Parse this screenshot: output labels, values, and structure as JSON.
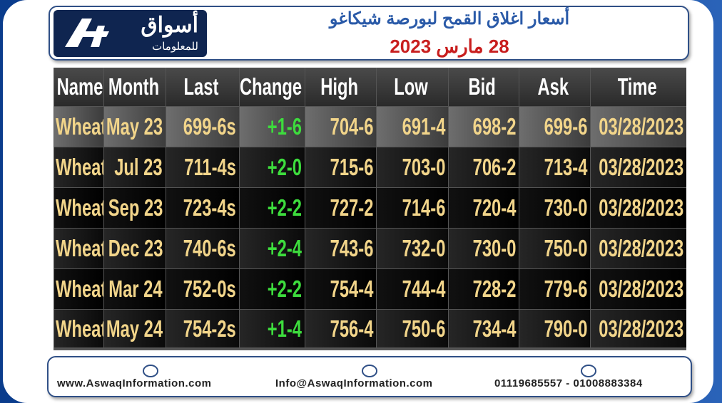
{
  "header": {
    "logo_main": "أسواق",
    "logo_sub": "للمعلومات",
    "title": "أسعار اغلاق القمح لبورصة شيكاغو",
    "date": "28 مارس 2023"
  },
  "table": {
    "columns": [
      "Name",
      "Month",
      "Last",
      "Change",
      "High",
      "Low",
      "Bid",
      "Ask",
      "Time"
    ],
    "rows": [
      [
        "Wheat",
        "May 23",
        "699-6s",
        "+1-6",
        "704-6",
        "691-4",
        "698-2",
        "699-6",
        "03/28/2023"
      ],
      [
        "Wheat",
        "Jul 23",
        "711-4s",
        "+2-0",
        "715-6",
        "703-0",
        "706-2",
        "713-4",
        "03/28/2023"
      ],
      [
        "Wheat",
        "Sep 23",
        "723-4s",
        "+2-2",
        "727-2",
        "714-6",
        "720-4",
        "730-0",
        "03/28/2023"
      ],
      [
        "Wheat",
        "Dec 23",
        "740-6s",
        "+2-4",
        "743-6",
        "732-0",
        "730-0",
        "750-0",
        "03/28/2023"
      ],
      [
        "Wheat",
        "Mar 24",
        "752-0s",
        "+2-2",
        "754-4",
        "744-4",
        "728-2",
        "779-6",
        "03/28/2023"
      ],
      [
        "Wheat",
        "May 24",
        "754-2s",
        "+1-4",
        "756-4",
        "750-6",
        "734-4",
        "790-0",
        "03/28/2023"
      ]
    ]
  },
  "footer": {
    "website": "www.AswaqInformation.com",
    "email": "Info@AswaqInformation.com",
    "phone": "01119685557 - 01008883384"
  }
}
